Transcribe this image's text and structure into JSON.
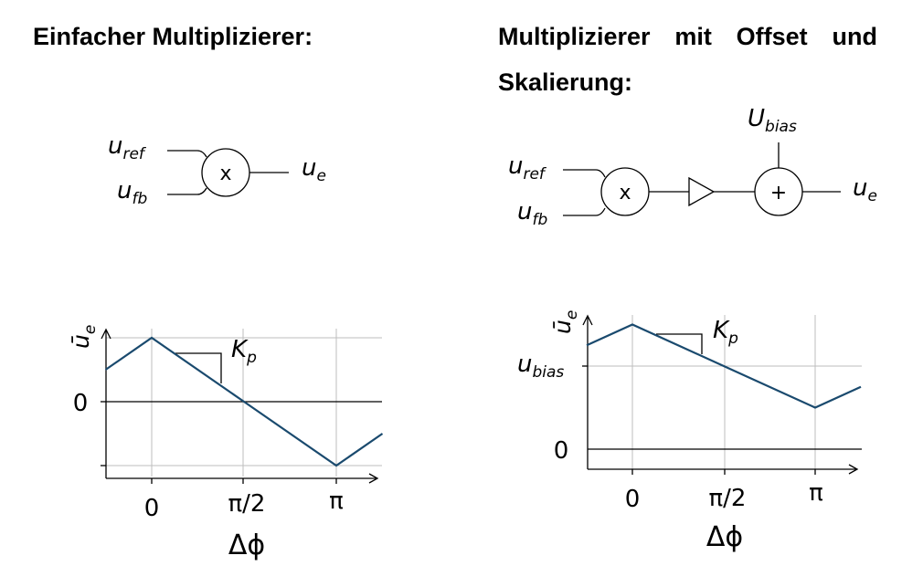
{
  "titles": {
    "left": "Einfacher Multiplizierer:",
    "right_line1": [
      "Multiplizierer",
      "mit",
      "Offset",
      "und"
    ],
    "right_line2": "Skalierung:"
  },
  "block_left": {
    "in1": "u",
    "in1_sub": "ref",
    "in2": "u",
    "in2_sub": "fb",
    "op": "x",
    "out": "u",
    "out_sub": "e"
  },
  "block_right": {
    "in1": "u",
    "in1_sub": "ref",
    "in2": "u",
    "in2_sub": "fb",
    "op_mult": "x",
    "op_add": "+",
    "bias": "U",
    "bias_sub": "bias",
    "out": "u",
    "out_sub": "e"
  },
  "colors": {
    "curve": "#1a4a6e",
    "grid": "#bdbdbd",
    "axis": "#000000"
  },
  "chart_data": [
    {
      "type": "line",
      "ylabel": "ū",
      "ylabel_sub": "e",
      "xlabel": "Δϕ",
      "x_ticks": [
        "0",
        "π/2",
        "π"
      ],
      "y_ticks": [
        "0"
      ],
      "annotation": "K",
      "annotation_sub": "p",
      "x": [
        -0.5,
        0,
        1,
        2,
        2.5
      ],
      "y": [
        0.5,
        1,
        0,
        -1,
        -0.5
      ]
    },
    {
      "type": "line",
      "ylabel": "ū",
      "ylabel_sub": "e",
      "xlabel": "Δϕ",
      "x_ticks": [
        "0",
        "π/2",
        "π"
      ],
      "y_ticks": [
        "0",
        "u_bias"
      ],
      "ytick_label": "u",
      "ytick_label_sub": "bias",
      "annotation": "K",
      "annotation_sub": "p",
      "x": [
        -0.5,
        0,
        1,
        2,
        2.5
      ],
      "y": [
        1.25,
        1.5,
        1.0,
        0.5,
        0.75
      ],
      "bias": 1.0
    }
  ]
}
